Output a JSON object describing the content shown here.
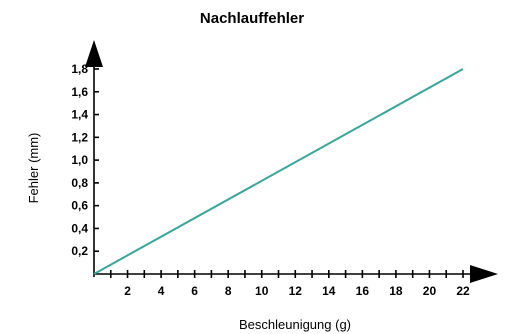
{
  "chart_data": {
    "type": "line",
    "title": "Nachlauffehler",
    "xlabel": "Beschleunigung (g)",
    "ylabel": "Fehler (mm)",
    "x_ticks": [
      "2",
      "4",
      "6",
      "8",
      "10",
      "12",
      "14",
      "16",
      "18",
      "20",
      "22"
    ],
    "x_tick_values": [
      2,
      4,
      6,
      8,
      10,
      12,
      14,
      16,
      18,
      20,
      22
    ],
    "y_ticks": [
      "0,2",
      "0,4",
      "0,6",
      "0,8",
      "1,0",
      "1,2",
      "1,4",
      "1,6",
      "1,8"
    ],
    "y_tick_values": [
      0.2,
      0.4,
      0.6,
      0.8,
      1.0,
      1.2,
      1.4,
      1.6,
      1.8
    ],
    "xlim": [
      0,
      22
    ],
    "ylim": [
      0,
      1.8
    ],
    "grid": false,
    "series": [
      {
        "x": [
          0,
          22
        ],
        "y": [
          0,
          1.8
        ],
        "color": "#3aa59a"
      }
    ],
    "axis_color": "#000000"
  }
}
